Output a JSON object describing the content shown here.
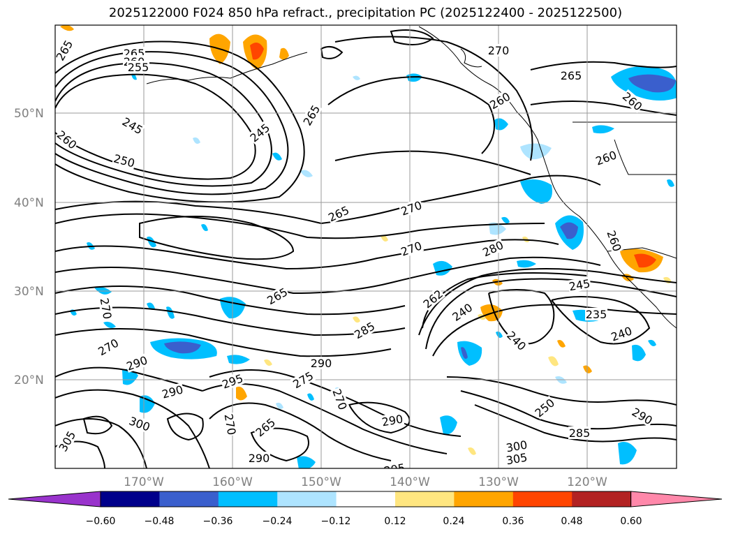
{
  "title": "2025122000 F024 850 hPa refract., precipitation PC (2025122400 - 2025122500)",
  "map": {
    "lat_labels": [
      "50°N",
      "40°N",
      "30°N",
      "20°N"
    ],
    "lon_labels": [
      "170°W",
      "160°W",
      "150°W",
      "140°W",
      "130°W",
      "120°W"
    ],
    "contour_labels": [
      {
        "t": "265",
        "r": -60
      },
      {
        "t": "265",
        "r": 0
      },
      {
        "t": "260",
        "r": 0
      },
      {
        "t": "255",
        "r": 0
      },
      {
        "t": "245",
        "r": 30
      },
      {
        "t": "250",
        "r": 15
      },
      {
        "t": "260",
        "r": 40
      },
      {
        "t": "245",
        "r": -40
      },
      {
        "t": "265",
        "r": -60
      },
      {
        "t": "270",
        "r": 0
      },
      {
        "t": "265",
        "r": 0
      },
      {
        "t": "260",
        "r": -30
      },
      {
        "t": "260",
        "r": 40
      },
      {
        "t": "260",
        "r": -20
      },
      {
        "t": "265",
        "r": -25
      },
      {
        "t": "270",
        "r": -20
      },
      {
        "t": "270",
        "r": -20
      },
      {
        "t": "280",
        "r": -25
      },
      {
        "t": "260",
        "r": 70
      },
      {
        "t": "265",
        "r": -30
      },
      {
        "t": "245",
        "r": -10
      },
      {
        "t": "270",
        "r": 80
      },
      {
        "t": "270",
        "r": -30
      },
      {
        "t": "285",
        "r": -30
      },
      {
        "t": "262",
        "r": -40
      },
      {
        "t": "240",
        "r": -35
      },
      {
        "t": "240",
        "r": 45
      },
      {
        "t": "235",
        "r": 0
      },
      {
        "t": "240",
        "r": -20
      },
      {
        "t": "290",
        "r": -20
      },
      {
        "t": "290",
        "r": -15
      },
      {
        "t": "295",
        "r": -20
      },
      {
        "t": "275",
        "r": -30
      },
      {
        "t": "270",
        "r": 70
      },
      {
        "t": "265",
        "r": -40
      },
      {
        "t": "270",
        "r": 80
      },
      {
        "t": "300",
        "r": 20
      },
      {
        "t": "305",
        "r": -60
      },
      {
        "t": "290",
        "r": 0
      },
      {
        "t": "290",
        "r": -10
      },
      {
        "t": "250",
        "r": -40
      },
      {
        "t": "285",
        "r": 0
      },
      {
        "t": "290",
        "r": 30
      },
      {
        "t": "300",
        "r": -10
      },
      {
        "t": "305",
        "r": -10
      },
      {
        "t": "295",
        "r": -10
      },
      {
        "t": "290",
        "r": 0
      }
    ]
  },
  "colorbar": {
    "ticks": [
      "−0.60",
      "−0.48",
      "−0.36",
      "−0.24",
      "−0.12",
      "0.12",
      "0.24",
      "0.36",
      "0.48",
      "0.60"
    ],
    "colors": [
      "#9933cc",
      "#00008b",
      "#3a5fcd",
      "#00bfff",
      "#aee4ff",
      "#ffffff",
      "#ffe680",
      "#ffa500",
      "#ff4500",
      "#b22222",
      "#ff88aa"
    ]
  }
}
